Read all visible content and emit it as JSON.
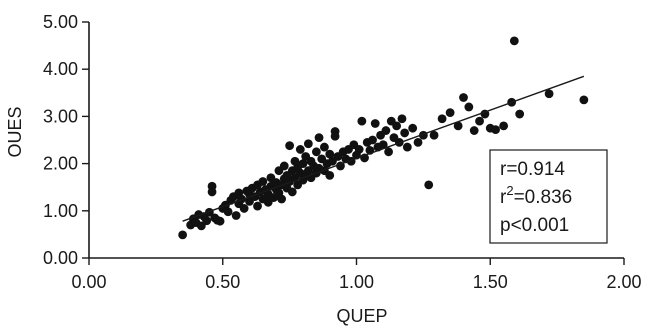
{
  "chart_data": {
    "type": "scatter",
    "xlabel": "QUEP",
    "ylabel": "OUES",
    "xlim": [
      0,
      2
    ],
    "ylim": [
      0,
      5
    ],
    "x_ticks": [
      "0.00",
      "0.50",
      "1.00",
      "1.50",
      "2.00"
    ],
    "y_ticks": [
      "0.00",
      "1.00",
      "2.00",
      "3.00",
      "4.00",
      "5.00"
    ],
    "grid": false,
    "annotation": {
      "r_line": "r=0.914",
      "r2_prefix": "r",
      "r2_sup": "2",
      "r2_value": "=0.836",
      "p_line": "p<0.001"
    },
    "trendline": {
      "x": [
        0.35,
        1.85
      ],
      "y": [
        0.78,
        3.85
      ]
    },
    "colors": {
      "points": "#111111",
      "axes": "#1a1a1a",
      "line": "#1a1a1a"
    },
    "points": [
      [
        0.35,
        0.49
      ],
      [
        0.38,
        0.7
      ],
      [
        0.39,
        0.83
      ],
      [
        0.4,
        0.75
      ],
      [
        0.41,
        0.92
      ],
      [
        0.42,
        0.68
      ],
      [
        0.43,
        0.88
      ],
      [
        0.44,
        0.79
      ],
      [
        0.45,
        0.97
      ],
      [
        0.46,
        1.52
      ],
      [
        0.46,
        1.4
      ],
      [
        0.47,
        0.85
      ],
      [
        0.48,
        0.8
      ],
      [
        0.49,
        0.78
      ],
      [
        0.5,
        1.05
      ],
      [
        0.51,
        1.12
      ],
      [
        0.52,
        0.98
      ],
      [
        0.53,
        1.22
      ],
      [
        0.54,
        1.3
      ],
      [
        0.55,
        0.9
      ],
      [
        0.56,
        1.15
      ],
      [
        0.56,
        1.38
      ],
      [
        0.57,
        1.25
      ],
      [
        0.58,
        1.05
      ],
      [
        0.59,
        1.42
      ],
      [
        0.6,
        1.2
      ],
      [
        0.6,
        1.35
      ],
      [
        0.61,
        1.48
      ],
      [
        0.62,
        1.3
      ],
      [
        0.63,
        1.1
      ],
      [
        0.63,
        1.55
      ],
      [
        0.64,
        1.4
      ],
      [
        0.65,
        1.25
      ],
      [
        0.65,
        1.62
      ],
      [
        0.66,
        1.45
      ],
      [
        0.67,
        1.18
      ],
      [
        0.67,
        1.35
      ],
      [
        0.68,
        1.52
      ],
      [
        0.68,
        1.7
      ],
      [
        0.69,
        1.28
      ],
      [
        0.7,
        1.45
      ],
      [
        0.7,
        1.6
      ],
      [
        0.71,
        1.38
      ],
      [
        0.71,
        1.85
      ],
      [
        0.72,
        1.55
      ],
      [
        0.72,
        1.25
      ],
      [
        0.73,
        1.68
      ],
      [
        0.73,
        1.95
      ],
      [
        0.74,
        1.48
      ],
      [
        0.74,
        1.75
      ],
      [
        0.75,
        1.62
      ],
      [
        0.75,
        2.38
      ],
      [
        0.76,
        1.4
      ],
      [
        0.76,
        1.85
      ],
      [
        0.77,
        1.7
      ],
      [
        0.77,
        2.05
      ],
      [
        0.78,
        1.55
      ],
      [
        0.78,
        1.92
      ],
      [
        0.79,
        1.8
      ],
      [
        0.79,
        2.3
      ],
      [
        0.8,
        1.65
      ],
      [
        0.8,
        2.0
      ],
      [
        0.81,
        1.75
      ],
      [
        0.81,
        2.15
      ],
      [
        0.82,
        1.85
      ],
      [
        0.82,
        2.42
      ],
      [
        0.83,
        1.7
      ],
      [
        0.83,
        2.05
      ],
      [
        0.84,
        1.95
      ],
      [
        0.85,
        1.8
      ],
      [
        0.85,
        2.25
      ],
      [
        0.86,
        1.9
      ],
      [
        0.86,
        2.55
      ],
      [
        0.87,
        2.1
      ],
      [
        0.88,
        1.85
      ],
      [
        0.88,
        2.35
      ],
      [
        0.89,
        2.0
      ],
      [
        0.9,
        1.75
      ],
      [
        0.9,
        2.2
      ],
      [
        0.91,
        2.05
      ],
      [
        0.92,
        2.68
      ],
      [
        0.92,
        2.58
      ],
      [
        0.93,
        2.15
      ],
      [
        0.94,
        1.95
      ],
      [
        0.95,
        2.25
      ],
      [
        0.96,
        2.1
      ],
      [
        0.97,
        2.3
      ],
      [
        0.98,
        2.05
      ],
      [
        0.99,
        2.4
      ],
      [
        1.0,
        2.18
      ],
      [
        1.01,
        2.3
      ],
      [
        1.02,
        2.9
      ],
      [
        1.03,
        2.12
      ],
      [
        1.04,
        2.45
      ],
      [
        1.05,
        2.28
      ],
      [
        1.06,
        2.5
      ],
      [
        1.07,
        2.85
      ],
      [
        1.08,
        2.35
      ],
      [
        1.09,
        2.6
      ],
      [
        1.1,
        2.4
      ],
      [
        1.11,
        2.7
      ],
      [
        1.12,
        2.25
      ],
      [
        1.13,
        2.9
      ],
      [
        1.14,
        2.55
      ],
      [
        1.15,
        2.8
      ],
      [
        1.16,
        2.45
      ],
      [
        1.17,
        2.95
      ],
      [
        1.18,
        2.65
      ],
      [
        1.19,
        2.35
      ],
      [
        1.21,
        2.75
      ],
      [
        1.23,
        2.45
      ],
      [
        1.25,
        2.6
      ],
      [
        1.27,
        1.55
      ],
      [
        1.29,
        2.6
      ],
      [
        1.32,
        2.95
      ],
      [
        1.35,
        3.08
      ],
      [
        1.38,
        2.8
      ],
      [
        1.4,
        3.4
      ],
      [
        1.42,
        3.2
      ],
      [
        1.44,
        2.7
      ],
      [
        1.46,
        2.9
      ],
      [
        1.48,
        3.05
      ],
      [
        1.5,
        2.75
      ],
      [
        1.52,
        2.72
      ],
      [
        1.55,
        2.8
      ],
      [
        1.58,
        3.3
      ],
      [
        1.59,
        4.6
      ],
      [
        1.61,
        3.05
      ],
      [
        1.72,
        3.48
      ],
      [
        1.85,
        3.35
      ]
    ]
  }
}
